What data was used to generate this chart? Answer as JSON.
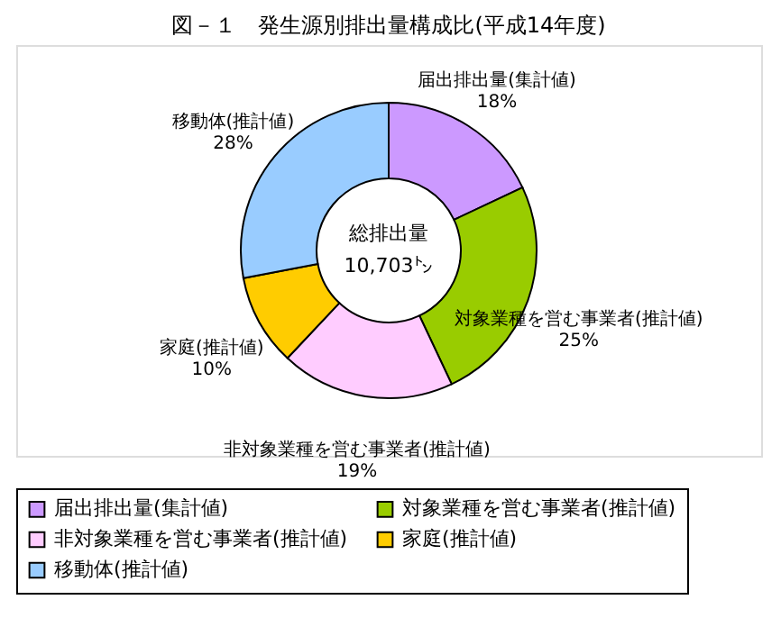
{
  "chart_data": {
    "type": "donut",
    "title": "図－１　発生源別排出量構成比(平成14年度)",
    "categories": [
      "届出排出量(集計値)",
      "対象業種を営む事業者(推計値)",
      "非対象業種を営む事業者(推計値)",
      "家庭(推計値)",
      "移動体(推計値)"
    ],
    "values": [
      18,
      25,
      19,
      10,
      28
    ],
    "colors": [
      "#cc99ff",
      "#99cc00",
      "#ffccff",
      "#ffcc00",
      "#99ccff"
    ],
    "value_labels": [
      "18%",
      "25%",
      "19%",
      "10%",
      "28%"
    ],
    "annotations": [
      "総排出量",
      "10,703㌧"
    ],
    "legend": "bottom"
  }
}
